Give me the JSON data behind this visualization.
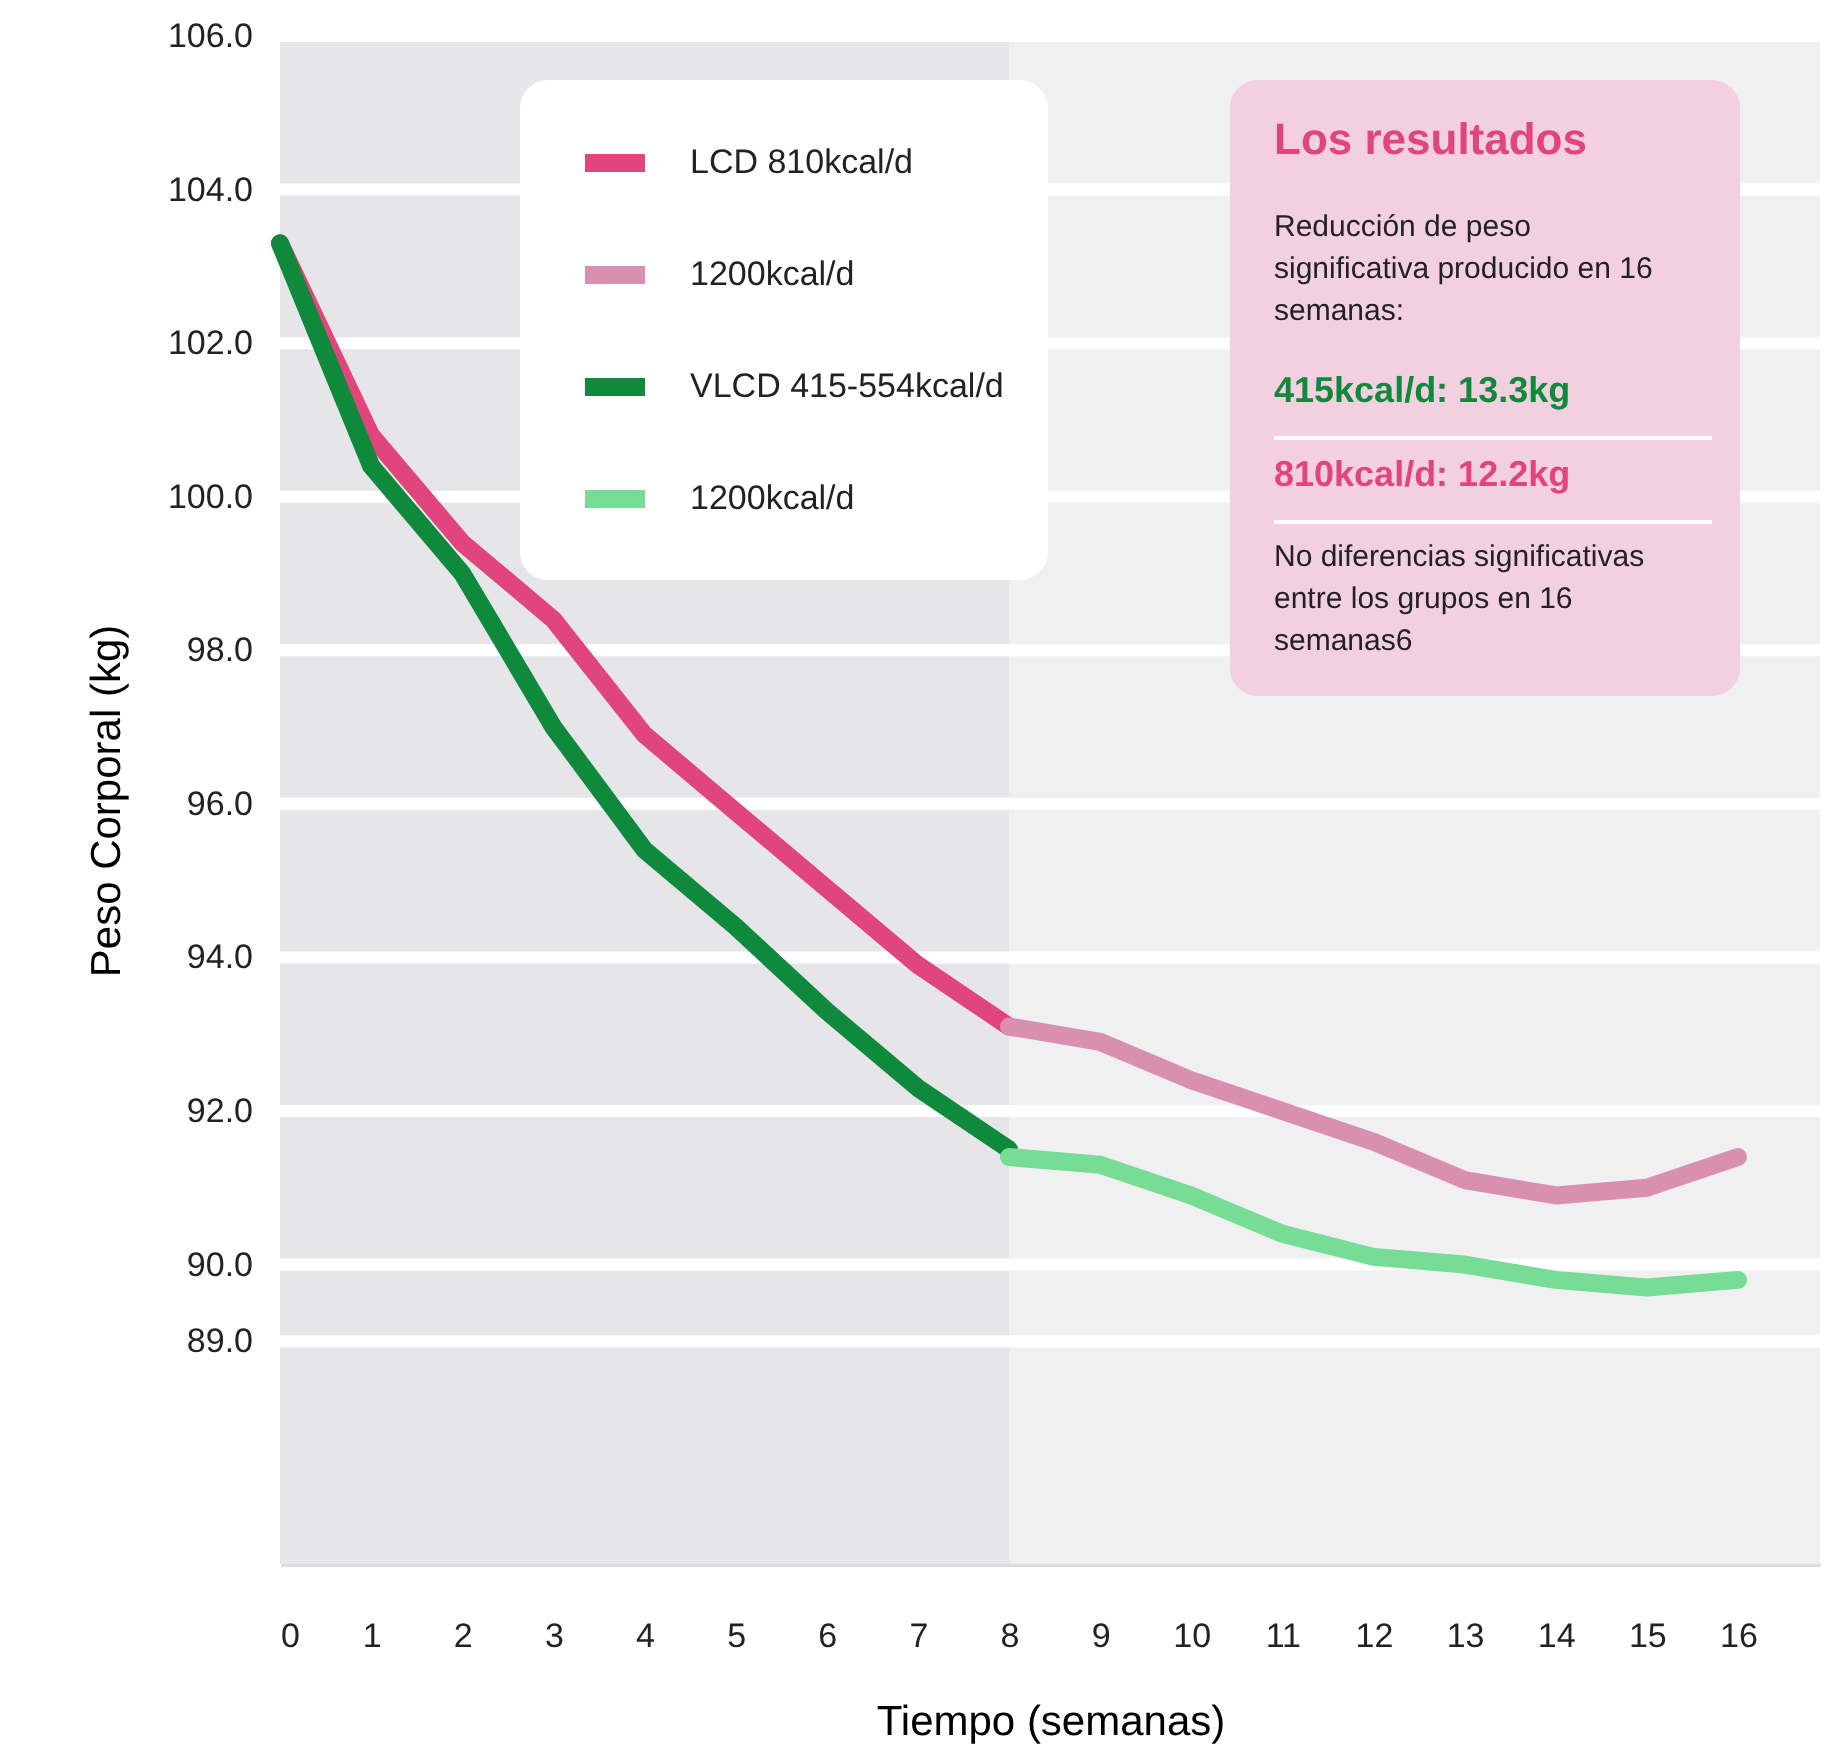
{
  "chart_data": {
    "type": "line",
    "xlabel": "Tiempo (semanas)",
    "ylabel": "Peso Corporal (kg)",
    "xlim": [
      0,
      16.9
    ],
    "xticks": [
      0,
      1,
      2,
      3,
      4,
      5,
      6,
      7,
      8,
      9,
      10,
      11,
      12,
      13,
      14,
      15,
      16
    ],
    "ylim": [
      86.1,
      106
    ],
    "yticks": [
      {
        "value": 89,
        "label": "89.0"
      },
      {
        "value": 90,
        "label": "90.0"
      },
      {
        "value": 92,
        "label": "92.0"
      },
      {
        "value": 94,
        "label": "94.0"
      },
      {
        "value": 96,
        "label": "96.0"
      },
      {
        "value": 98,
        "label": "98.0"
      },
      {
        "value": 100,
        "label": "100.0"
      },
      {
        "value": 102,
        "label": "102.0"
      },
      {
        "value": 104,
        "label": "104.0"
      },
      {
        "value": 106,
        "label": "106.0"
      }
    ],
    "grid": "y",
    "legend": "top",
    "line_style": "solid",
    "marker": "none",
    "bands": [
      {
        "axis": "x",
        "from": 0,
        "to": 8,
        "color": "#e6e6e8"
      },
      {
        "axis": "x",
        "from": 8,
        "to": 16.9,
        "color": "#f0f0f0"
      }
    ],
    "series": [
      {
        "name": "LCD 810kcal/d",
        "color": "#e0457b",
        "x": [
          0,
          1,
          2,
          3,
          4,
          5,
          6,
          7,
          8
        ],
        "values": [
          103.3,
          100.8,
          99.4,
          98.4,
          96.9,
          95.9,
          94.9,
          93.9,
          93.1
        ]
      },
      {
        "name": "1200kcal/d",
        "color": "#d98fb0",
        "x": [
          8,
          9,
          10,
          11,
          12,
          13,
          14,
          15,
          16
        ],
        "values": [
          93.1,
          92.9,
          92.4,
          92.0,
          91.6,
          91.1,
          90.9,
          91.0,
          91.4
        ]
      },
      {
        "name": "VLCD 415-554kcal/d",
        "color": "#0f8a3c",
        "x": [
          0,
          1,
          2,
          3,
          4,
          5,
          6,
          7,
          8
        ],
        "values": [
          103.3,
          100.4,
          99.0,
          97.0,
          95.4,
          94.4,
          93.3,
          92.3,
          91.5
        ]
      },
      {
        "name": "1200kcal/d",
        "color": "#76dc96",
        "x": [
          8,
          9,
          10,
          11,
          12,
          13,
          14,
          15,
          16
        ],
        "values": [
          91.4,
          91.3,
          90.9,
          90.4,
          90.1,
          90.0,
          89.8,
          89.7,
          89.8
        ]
      }
    ],
    "annotations": [
      "Los resultados",
      "Reducción de peso significativa producido en 16 semanas:",
      "415kcal/d:  13.3kg",
      "810kcal/d:  12.2kg",
      "No diferencias significativas entre los grupos en 16 semanas6"
    ]
  }
}
